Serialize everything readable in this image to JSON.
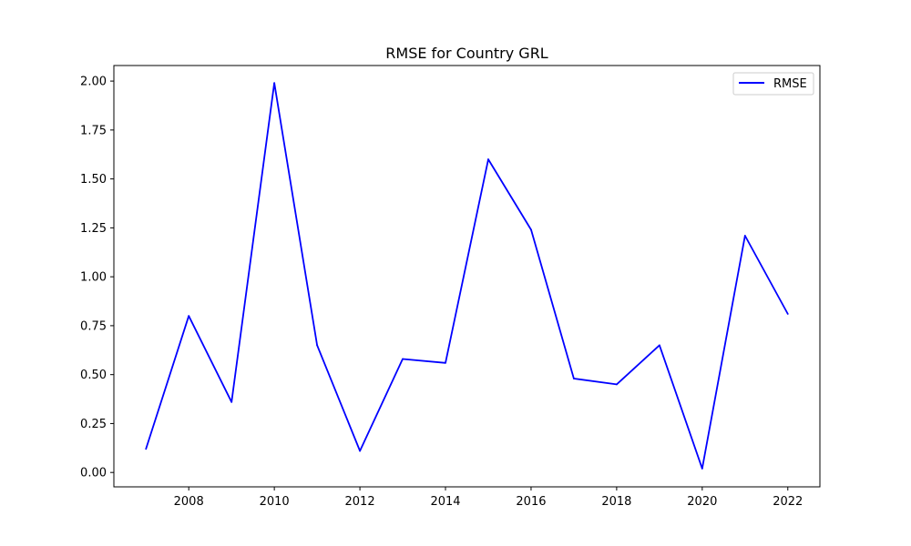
{
  "chart_data": {
    "type": "line",
    "title": "RMSE for Country GRL",
    "xlabel": "",
    "ylabel": "",
    "x": [
      2007,
      2008,
      2009,
      2010,
      2011,
      2012,
      2013,
      2014,
      2015,
      2016,
      2017,
      2018,
      2019,
      2020,
      2021,
      2022
    ],
    "series": [
      {
        "name": "RMSE",
        "color": "#0000ff",
        "values": [
          0.12,
          0.8,
          0.36,
          1.99,
          0.65,
          0.11,
          0.58,
          0.56,
          1.6,
          1.24,
          0.48,
          0.45,
          0.65,
          0.02,
          1.21,
          0.81
        ]
      }
    ],
    "xticks": [
      "2008",
      "2010",
      "2012",
      "2014",
      "2016",
      "2018",
      "2020",
      "2022"
    ],
    "yticks": [
      "0.00",
      "0.25",
      "0.50",
      "0.75",
      "1.00",
      "1.25",
      "1.50",
      "1.75",
      "2.00"
    ],
    "xlim": [
      2006.25,
      2022.75
    ],
    "ylim": [
      -0.0735,
      2.0795
    ],
    "grid": false,
    "legend_position": "top-right"
  }
}
